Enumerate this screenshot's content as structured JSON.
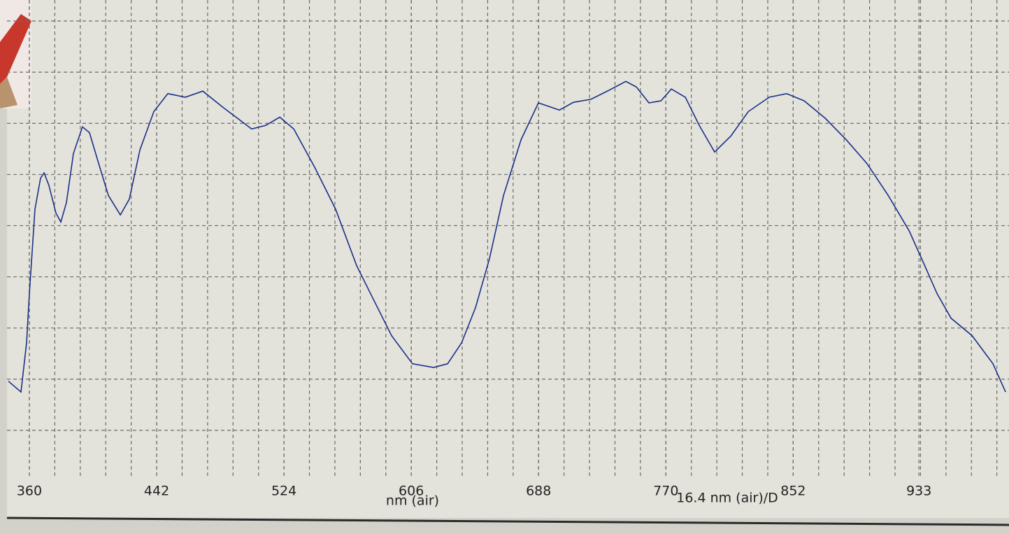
{
  "chart_data": {
    "type": "line",
    "x_label": "nm (air)",
    "annotation": "16.4 nm (air)/D",
    "x": [
      346.5,
      354.6,
      358.2,
      360.0,
      363.6,
      367.2,
      369.5,
      372.6,
      377.1,
      380.3,
      383.9,
      388.4,
      394.2,
      398.7,
      404.1,
      410.9,
      418.6,
      424.4,
      431.2,
      440.2,
      449.2,
      460.5,
      471.7,
      485.2,
      503.2,
      512.3,
      521.3,
      530.3,
      543.8,
      557.3,
      570.8,
      579.8,
      593.3,
      606.8,
      620.4,
      629.4,
      638.4,
      647.4,
      656.4,
      665.4,
      676.7,
      687.9,
      701.4,
      710.5,
      721.7,
      733.0,
      744.2,
      751.0,
      759.1,
      766.8,
      773.5,
      782.5,
      791.5,
      801.4,
      811.8,
      823.1,
      836.6,
      847.8,
      859.1,
      872.6,
      886.1,
      899.6,
      913.2,
      926.7,
      935.7,
      944.7,
      953.7,
      967.2,
      980.7,
      988.8
    ],
    "series": [
      {
        "color": "#1c2f86",
        "values": [
          1.96,
          1.75,
          2.71,
          3.67,
          5.32,
          5.93,
          6.03,
          5.79,
          5.25,
          5.07,
          5.45,
          6.41,
          6.93,
          6.82,
          6.27,
          5.59,
          5.21,
          5.52,
          6.48,
          7.23,
          7.58,
          7.51,
          7.63,
          7.3,
          6.89,
          6.96,
          7.12,
          6.89,
          6.14,
          5.32,
          4.22,
          3.67,
          2.85,
          2.3,
          2.23,
          2.3,
          2.71,
          3.4,
          4.36,
          5.59,
          6.68,
          7.4,
          7.26,
          7.41,
          7.47,
          7.64,
          7.82,
          7.71,
          7.4,
          7.44,
          7.67,
          7.51,
          6.96,
          6.44,
          6.75,
          7.23,
          7.51,
          7.58,
          7.44,
          7.1,
          6.68,
          6.21,
          5.59,
          4.9,
          4.29,
          3.67,
          3.19,
          2.85,
          2.3,
          1.75
        ]
      }
    ],
    "xlim": [
      345.6,
      991
    ],
    "xticks": [
      360,
      442,
      524,
      606,
      688,
      770,
      852,
      933
    ],
    "ylim": [
      0,
      9
    ],
    "yticks": [
      1,
      2,
      3,
      4,
      5,
      6,
      7,
      8,
      9
    ],
    "grid": true
  }
}
